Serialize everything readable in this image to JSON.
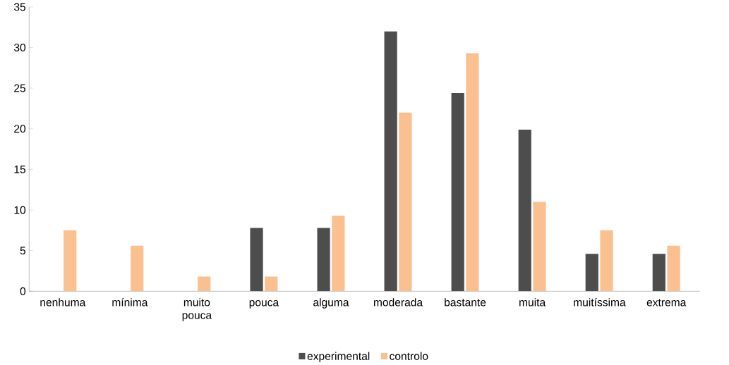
{
  "chart_data": {
    "type": "bar",
    "categories": [
      "nenhuma",
      "mínima",
      "muito pouca",
      "pouca",
      "alguma",
      "moderada",
      "bastante",
      "muita",
      "muitíssima",
      "extrema"
    ],
    "series": [
      {
        "name": "experimental",
        "color": "#4d4d4d",
        "values": [
          0,
          0,
          0,
          7.8,
          7.8,
          32,
          24.4,
          19.9,
          4.6,
          4.6
        ]
      },
      {
        "name": "controlo",
        "color": "#fac090",
        "values": [
          7.5,
          5.6,
          1.8,
          1.8,
          9.3,
          22,
          29.3,
          11,
          7.5,
          5.6
        ]
      }
    ],
    "ylim": [
      0,
      35
    ],
    "yticks": [
      0,
      5,
      10,
      15,
      20,
      25,
      30,
      35
    ],
    "grid": false,
    "legend": "bottom"
  }
}
